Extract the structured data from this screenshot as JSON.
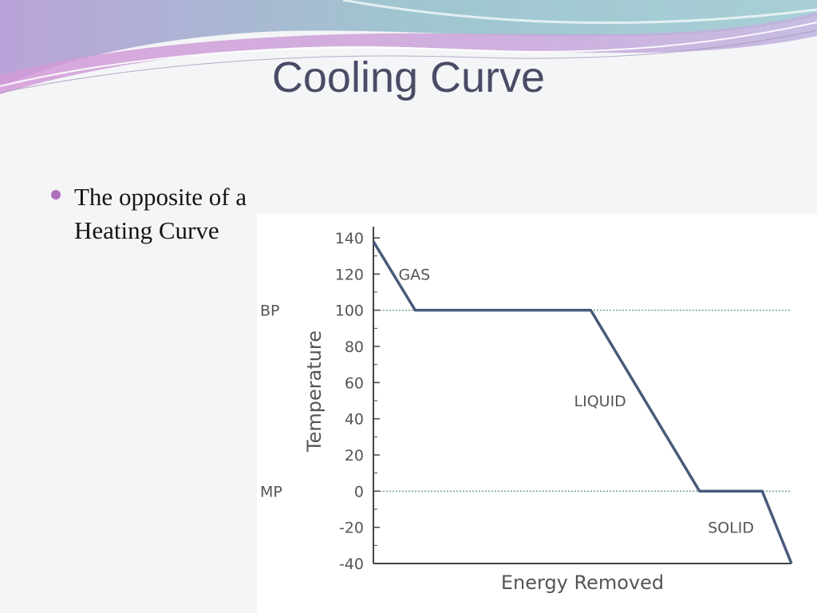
{
  "slide": {
    "title": "Cooling Curve",
    "bullets": [
      {
        "lines": [
          "The opposite of a",
          "Heating Curve"
        ]
      }
    ],
    "colors": {
      "title": "#4a4c66",
      "bullet": "#b06fbc",
      "curve": "#4a5a7c",
      "reference_line": "#4f8a6a"
    }
  },
  "chart_data": {
    "type": "line",
    "xlabel": "Energy Removed",
    "ylabel": "Temperature",
    "ylim": [
      -40,
      140
    ],
    "ytick_values": [
      140,
      120,
      100,
      80,
      60,
      40,
      20,
      0,
      -20,
      -40
    ],
    "ytick_labels": [
      "140",
      "120",
      "100",
      "80",
      "60",
      "40",
      "20",
      "0",
      "-20",
      "-40"
    ],
    "x_ticks_shown": false,
    "grid": false,
    "series": [
      {
        "x": [
          0,
          10,
          52,
          78,
          93,
          100
        ],
        "y": [
          138,
          100,
          100,
          0,
          0,
          -40
        ]
      }
    ],
    "reference_lines": [
      {
        "label": "BP",
        "y": 100
      },
      {
        "label": "MP",
        "y": 0
      }
    ],
    "annotations": [
      {
        "text": "GAS",
        "x": 6,
        "y": 120
      },
      {
        "text": "LIQUID",
        "x": 48,
        "y": 50
      },
      {
        "text": "SOLID",
        "x": 80,
        "y": -20
      }
    ]
  }
}
